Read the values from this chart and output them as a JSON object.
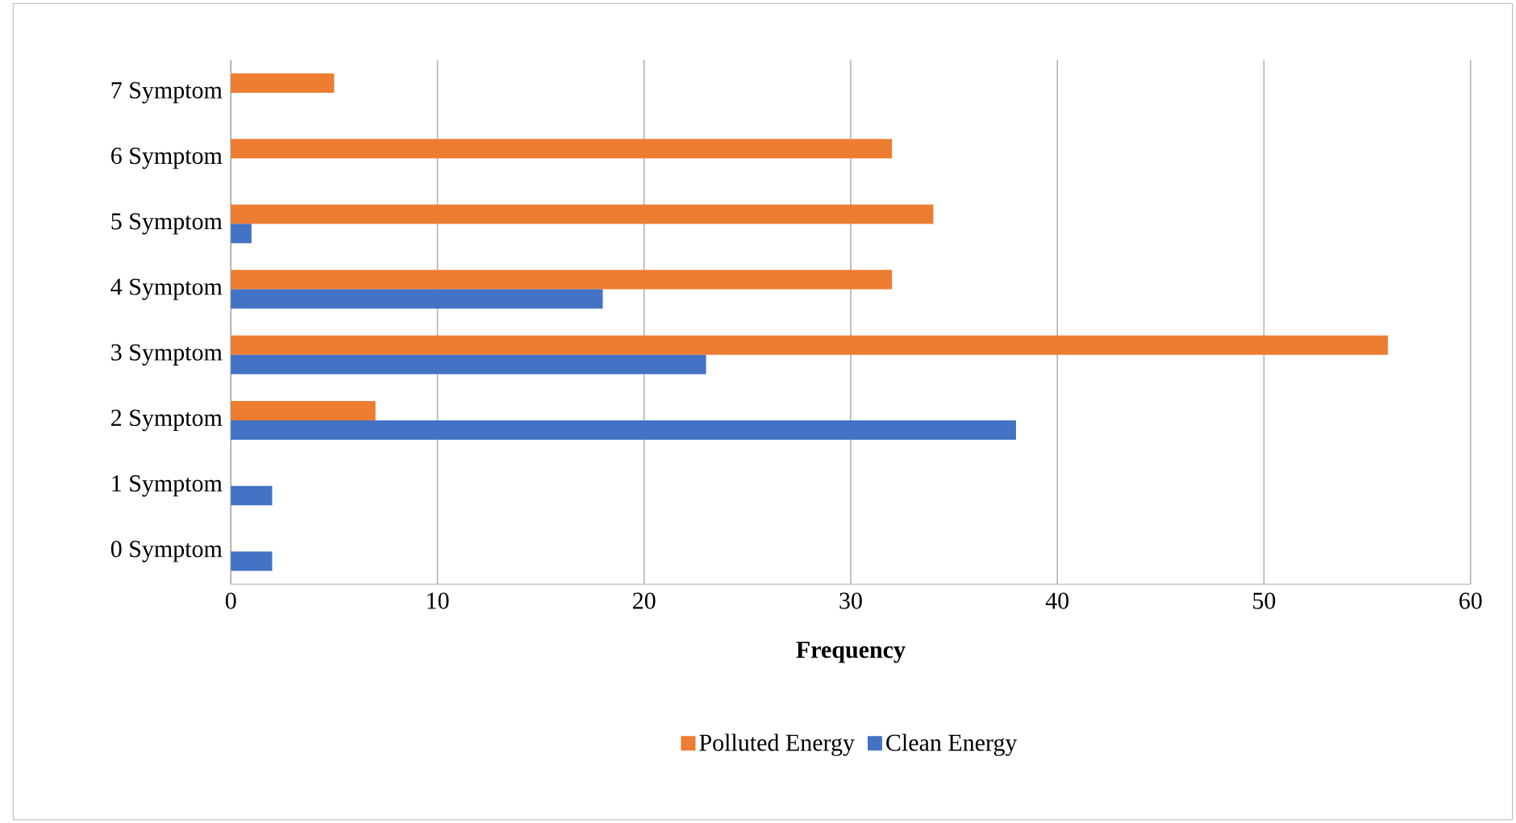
{
  "chart_data": {
    "type": "bar",
    "orientation": "horizontal",
    "categories": [
      "7 Symptom",
      "6 Symptom",
      "5 Symptom",
      "4 Symptom",
      "3 Symptom",
      "2 Symptom",
      "1 Symptom",
      "0 Symptom"
    ],
    "series": [
      {
        "name": "Polluted Energy",
        "color": "#ed7d31",
        "values": [
          5,
          32,
          34,
          32,
          56,
          7,
          0,
          0
        ]
      },
      {
        "name": "Clean Energy",
        "color": "#4472c4",
        "values": [
          0,
          0,
          1,
          18,
          23,
          38,
          2,
          2
        ]
      }
    ],
    "xlabel": "Frequency",
    "xlim": [
      0,
      60
    ],
    "xticks": [
      0,
      10,
      20,
      30,
      40,
      50,
      60
    ],
    "grid": "x",
    "legend": "bottom"
  }
}
